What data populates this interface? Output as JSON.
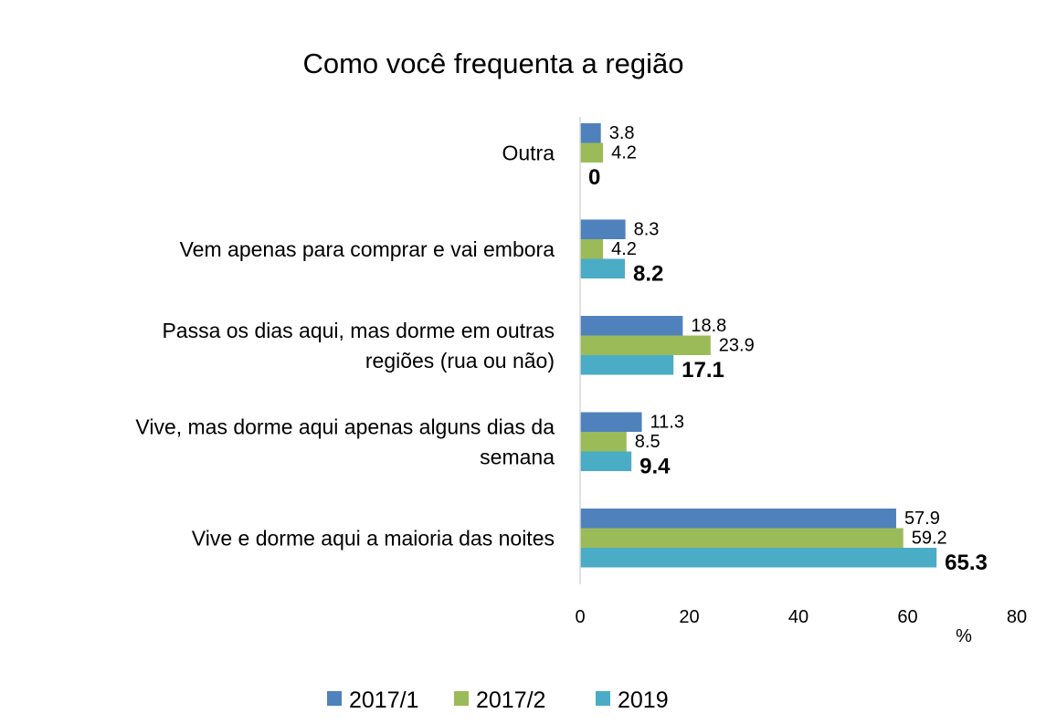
{
  "chart_data": {
    "type": "bar",
    "orientation": "horizontal",
    "title": "Como você frequenta a região",
    "xlabel": "%",
    "ylabel": "",
    "xlim": [
      0,
      80
    ],
    "xticks": [
      "0",
      "20",
      "40",
      "60",
      "80"
    ],
    "grid": false,
    "legend_position": "bottom",
    "categories": [
      "Outra",
      "Vem apenas para comprar e vai embora",
      "Passa os dias aqui, mas dorme em outras regiões (rua ou não)",
      "Vive, mas dorme aqui apenas alguns dias da semana",
      "Vive e dorme aqui a maioria das noites"
    ],
    "category_lines": [
      [
        "Outra"
      ],
      [
        "Vem apenas para comprar e vai embora"
      ],
      [
        "Passa os dias aqui, mas dorme em outras",
        "regiões (rua ou não)"
      ],
      [
        "Vive, mas dorme aqui apenas alguns dias da",
        "semana"
      ],
      [
        "Vive e dorme aqui a maioria das noites"
      ]
    ],
    "series": [
      {
        "name": "2017/1",
        "color": "#4f81bd",
        "values": [
          3.8,
          8.3,
          18.8,
          11.3,
          57.9
        ],
        "labels": [
          "3.8",
          "8.3",
          "18.8",
          "11.3",
          "57.9"
        ]
      },
      {
        "name": "2017/2",
        "color": "#9bbb59",
        "values": [
          4.2,
          4.2,
          23.9,
          8.5,
          59.2
        ],
        "labels": [
          "4.2",
          "4.2",
          "23.9",
          "8.5",
          "59.2"
        ]
      },
      {
        "name": "2019",
        "color": "#4bacc6",
        "values": [
          0,
          8.2,
          17.1,
          9.4,
          65.3
        ],
        "labels": [
          "0",
          "8.2",
          "17.1",
          "9.4",
          "65.3"
        ]
      }
    ]
  }
}
